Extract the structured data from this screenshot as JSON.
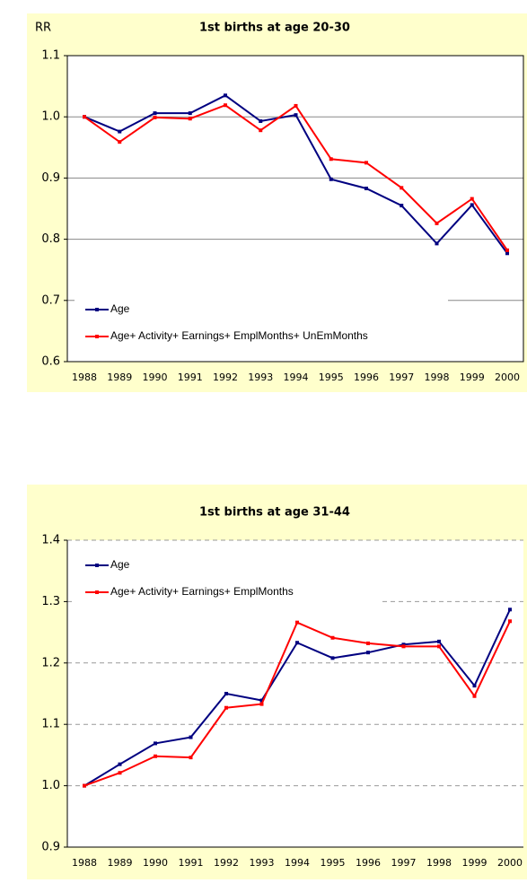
{
  "chart_data": [
    {
      "type": "line",
      "title": "1st births at age 20-30",
      "ylabel": "RR",
      "categories": [
        "1988",
        "1989",
        "1990",
        "1991",
        "1992",
        "1993",
        "1994",
        "1995",
        "1996",
        "1997",
        "1998",
        "1999",
        "2000"
      ],
      "series": [
        {
          "name": "Age",
          "color": "#000080",
          "values": [
            1.0,
            0.976,
            1.006,
            1.006,
            1.035,
            0.993,
            1.003,
            0.898,
            0.883,
            0.855,
            0.793,
            0.856,
            0.777
          ]
        },
        {
          "name": "Age+ Activity+ Earnings+ EmplMonths+ UnEmMonths",
          "color": "#ff0000",
          "values": [
            1.0,
            0.959,
            0.999,
            0.997,
            1.019,
            0.978,
            1.018,
            0.931,
            0.925,
            0.884,
            0.826,
            0.866,
            0.782
          ]
        }
      ],
      "ylim": [
        0.6,
        1.1
      ],
      "yticks": [
        {
          "value": 0.6,
          "label": "0.6"
        },
        {
          "value": 0.7,
          "label": "0.7"
        },
        {
          "value": 0.8,
          "label": "0.8"
        },
        {
          "value": 0.9,
          "label": "0.9"
        },
        {
          "value": 1.0,
          "label": "1.0"
        },
        {
          "value": 1.1,
          "label": "1.1"
        }
      ],
      "grid": true,
      "grid_style": "solid",
      "legend": "lower left"
    },
    {
      "type": "line",
      "title": "1st births at age 31-44",
      "categories": [
        "1988",
        "1989",
        "1990",
        "1991",
        "1992",
        "1993",
        "1994",
        "1995",
        "1996",
        "1997",
        "1998",
        "1999",
        "2000"
      ],
      "series": [
        {
          "name": "Age",
          "color": "#000080",
          "values": [
            1.0,
            1.035,
            1.069,
            1.079,
            1.15,
            1.139,
            1.233,
            1.208,
            1.217,
            1.23,
            1.235,
            1.163,
            1.287
          ]
        },
        {
          "name": "Age+ Activity+ Earnings+ EmplMonths",
          "color": "#ff0000",
          "values": [
            1.0,
            1.021,
            1.048,
            1.046,
            1.127,
            1.133,
            1.266,
            1.241,
            1.232,
            1.227,
            1.227,
            1.146,
            1.268
          ]
        }
      ],
      "ylim": [
        0.9,
        1.4
      ],
      "yticks": [
        {
          "value": 0.9,
          "label": "0.9"
        },
        {
          "value": 1.0,
          "label": "1.0"
        },
        {
          "value": 1.1,
          "label": "1.1"
        },
        {
          "value": 1.2,
          "label": "1.2"
        },
        {
          "value": 1.3,
          "label": "1.3"
        },
        {
          "value": 1.4,
          "label": "1.4"
        }
      ],
      "grid": true,
      "grid_style": "dashed",
      "legend": "upper left"
    }
  ]
}
